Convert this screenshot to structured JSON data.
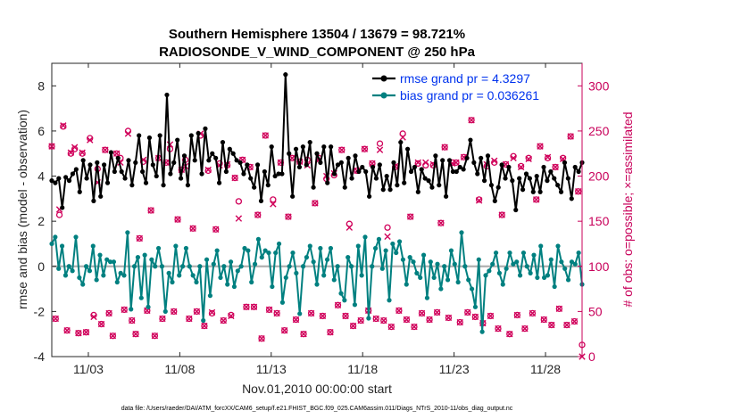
{
  "chart_data": {
    "type": "line",
    "title": "Southern Hemisphere 13504 / 13679 = 98.721%",
    "subtitle": "RADIOSONDE_V_WIND_COMPONENT @ 250 hPa",
    "xlabel": "Nov.01,2010 00:00:00 start",
    "ylabel": "rmse and bias (model - observation)",
    "ylabel_right": "# of obs: o=possible; ×=assimilated",
    "footer": "data file: /Users/raeder/DAI/ATM_forcXX/CAM6_setup/f.e21.FHIST_BGC.f09_025.CAM6assim.011/Diags_NTrS_2010-11/obs_diag_output.nc",
    "xlim": [
      1.0,
      30.0
    ],
    "ylim": [
      -4,
      9
    ],
    "ylim_right": [
      0,
      325
    ],
    "x_ticks": [
      {
        "value": 3,
        "label": "11/03"
      },
      {
        "value": 8,
        "label": "11/08"
      },
      {
        "value": 13,
        "label": "11/13"
      },
      {
        "value": 18,
        "label": "11/18"
      },
      {
        "value": 23,
        "label": "11/23"
      },
      {
        "value": 28,
        "label": "11/28"
      }
    ],
    "y_ticks": [
      "-4",
      "-2",
      "0",
      "2",
      "4",
      "6",
      "8"
    ],
    "y_ticks_right": [
      "0",
      "50",
      "100",
      "150",
      "200",
      "250",
      "300"
    ],
    "legend": [
      {
        "name": "rmse grand pr = 4.3297",
        "color": "#000000"
      },
      {
        "name": "bias grand pr = 0.036261",
        "color": "#008080"
      }
    ],
    "legend_position": "top-right",
    "series": [
      {
        "name": "rmse",
        "color": "#000000",
        "values": [
          3.8,
          3.7,
          3.9,
          2.6,
          3.95,
          3.8,
          4.1,
          4.3,
          3.3,
          4.7,
          3.9,
          4.5,
          2.9,
          4.6,
          3.1,
          4.5,
          3.7,
          5.05,
          4.2,
          4.8,
          4.2,
          3.9,
          4.7,
          3.6,
          4.6,
          5.8,
          4.2,
          3.7,
          5.7,
          4.5,
          4.0,
          5.8,
          3.6,
          7.6,
          4.1,
          4.6,
          5.6,
          3.9,
          4.9,
          3.6,
          5.8,
          4.7,
          5.9,
          4.1,
          6.1,
          4.7,
          5.0,
          4.8,
          3.7,
          5.5,
          4.2,
          5.2,
          5.0,
          4.7,
          4.6,
          4.1,
          4.5,
          3.9,
          3.5,
          4.5,
          2.9,
          4.2,
          3.6,
          5.3,
          4.0,
          4.1,
          4.1,
          8.5,
          5.0,
          3.1,
          5.2,
          4.4,
          5.3,
          4.5,
          5.5,
          3.5,
          5.0,
          4.6,
          5.3,
          3.7,
          5.3,
          4.1,
          4.5,
          4.6,
          3.5,
          4.8,
          3.9,
          4.9,
          4.2,
          4.4,
          4.2,
          3.1,
          4.4,
          3.9,
          4.5,
          3.4,
          4.0,
          3.4,
          4.6,
          3.6,
          5.5,
          3.7,
          5.2,
          4.2,
          4.4,
          3.3,
          4.3,
          3.9,
          3.8,
          3.5,
          4.9,
          3.6,
          4.7,
          3.1,
          4.7,
          4.2,
          4.2,
          4.4,
          4.3,
          4.8,
          5.6,
          4.6,
          4.1,
          4.8,
          3.8,
          4.9,
          3.6,
          2.9,
          3.5,
          4.5,
          3.9,
          4.4,
          3.8,
          2.5,
          3.9,
          3.4,
          4.1,
          3.9,
          3.3,
          4.0,
          3.3,
          4.4,
          3.8,
          4.2,
          3.9,
          3.6,
          3.3,
          4.6,
          3.9,
          3.0,
          4.4,
          4.2,
          4.6
        ]
      },
      {
        "name": "bias",
        "color": "#008080",
        "values": [
          1.0,
          1.3,
          -0.1,
          0.9,
          -0.4,
          0.0,
          -0.2,
          1.3,
          -0.5,
          -0.8,
          0.0,
          -0.2,
          0.9,
          -0.6,
          0.5,
          -0.4,
          0.3,
          0.2,
          0.2,
          -0.7,
          -0.3,
          -0.4,
          1.5,
          -1.9,
          0.0,
          0.4,
          -1.4,
          0.5,
          -1.8,
          0.3,
          0.0,
          0.8,
          0.0,
          -2.0,
          -0.3,
          -0.7,
          0.9,
          -0.4,
          0.0,
          0.8,
          0.0,
          -0.4,
          -0.7,
          0.0,
          -2.4,
          0.3,
          -1.3,
          0.1,
          0.7,
          -0.5,
          0.0,
          -0.8,
          0.2,
          -0.9,
          -0.2,
          0.0,
          0.8,
          0.7,
          -0.7,
          0.1,
          1.2,
          0.4,
          0.7,
          0.6,
          -0.9,
          0.6,
          1.0,
          -1.6,
          -0.5,
          0.0,
          0.6,
          -0.3,
          -2.1,
          0.0,
          0.4,
          0.9,
          0.2,
          -0.8,
          0.8,
          -0.4,
          0.3,
          0.8,
          -0.6,
          0.0,
          -1.2,
          -1.5,
          0.4,
          0.0,
          -1.7,
          0.9,
          -0.4,
          1.3,
          -2.3,
          0.0,
          0.8,
          1.2,
          -0.1,
          0.7,
          -1.5,
          1.0,
          0.6,
          1.1,
          0.3,
          -0.8,
          0.4,
          0.2,
          -0.3,
          -0.5,
          0.5,
          -1.4,
          0.2,
          -0.5,
          0.1,
          -1.0,
          0.0,
          -0.6,
          0.7,
          0.1,
          -0.7,
          1.5,
          0.0,
          -0.6,
          -1.0,
          -1.8,
          0.3,
          -2.9,
          -0.4,
          -0.2,
          0.1,
          0.6,
          -0.3,
          -0.8,
          -0.1,
          0.6,
          0.1,
          0.2,
          -0.4,
          0.6,
          0.0,
          -0.3,
          0.5,
          -0.5,
          0.9,
          -0.5,
          -0.4,
          0.3,
          -0.9,
          0.9,
          0.2,
          -0.1,
          -0.6,
          0.2,
          0.1,
          0.6,
          -0.8
        ]
      },
      {
        "name": "possible",
        "color": "#d0005a",
        "values": [
          233,
          42,
          157,
          255,
          29,
          225,
          230,
          26,
          225,
          27,
          242,
          46,
          208,
          36,
          229,
          48,
          23,
          225,
          220,
          52,
          250,
          40,
          25,
          131,
          216,
          51,
          162,
          23,
          220,
          42,
          215,
          230,
          50,
          152,
          207,
          218,
          42,
          142,
          50,
          245,
          34,
          206,
          48,
          141,
          214,
          40,
          212,
          46,
          198,
          172,
          218,
          55,
          210,
          55,
          157,
          20,
          245,
          52,
          174,
          48,
          215,
          29,
          155,
          220,
          41,
          216,
          25,
          218,
          48,
          170,
          220,
          45,
          197,
          27,
          201,
          57,
          229,
          45,
          147,
          34,
          206,
          40,
          230,
          51,
          214,
          42,
          236,
          40,
          143,
          33,
          210,
          51,
          247,
          41,
          155,
          33,
          214,
          48,
          212,
          41,
          212,
          49,
          148,
          232,
          43,
          215,
          215,
          38,
          221,
          49,
          262,
          44,
          174,
          37,
          211,
          45,
          215,
          31,
          157,
          213,
          25,
          222,
          46,
          211,
          31,
          220,
          48,
          174,
          233,
          41,
          220,
          35,
          210,
          53,
          220,
          35,
          244,
          39,
          183,
          13
        ]
      },
      {
        "name": "assimilated",
        "color": "#d0005a",
        "values": [
          233,
          42,
          163,
          256,
          29,
          226,
          232,
          26,
          226,
          27,
          240,
          44,
          193,
          36,
          229,
          48,
          23,
          225,
          215,
          52,
          247,
          40,
          25,
          131,
          218,
          51,
          162,
          23,
          220,
          42,
          215,
          235,
          50,
          152,
          207,
          211,
          42,
          142,
          50,
          247,
          34,
          207,
          49,
          141,
          212,
          40,
          213,
          45,
          198,
          153,
          218,
          55,
          210,
          55,
          157,
          20,
          245,
          52,
          169,
          48,
          215,
          29,
          155,
          220,
          41,
          216,
          25,
          212,
          48,
          170,
          218,
          45,
          200,
          27,
          203,
          57,
          229,
          45,
          143,
          34,
          206,
          40,
          230,
          51,
          214,
          42,
          229,
          40,
          133,
          33,
          211,
          51,
          243,
          41,
          155,
          33,
          215,
          48,
          215,
          41,
          213,
          49,
          148,
          232,
          43,
          214,
          215,
          38,
          221,
          49,
          262,
          44,
          173,
          37,
          213,
          45,
          217,
          31,
          157,
          213,
          25,
          220,
          46,
          210,
          31,
          219,
          48,
          174,
          233,
          41,
          221,
          35,
          210,
          53,
          219,
          35,
          244,
          39,
          183,
          0
        ]
      }
    ]
  }
}
